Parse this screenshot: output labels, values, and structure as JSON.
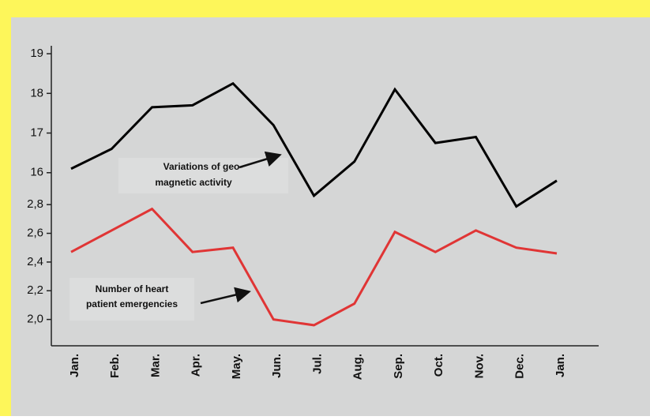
{
  "chart_data": {
    "type": "line",
    "categories": [
      "Jan.",
      "Feb.",
      "Mar.",
      "Apr.",
      "May.",
      "Jun.",
      "Jul.",
      "Aug.",
      "Sep.",
      "Oct.",
      "Nov.",
      "Dec.",
      "Jan."
    ],
    "series": [
      {
        "name": "Variations of geo-magnetic activity",
        "color": "#000000",
        "values": [
          16.1,
          16.6,
          17.65,
          17.7,
          18.25,
          17.2,
          15.42,
          16.28,
          18.1,
          16.75,
          16.9,
          15.15,
          15.8
        ]
      },
      {
        "name": "Number of heart patient emergencies",
        "color": "#e03535",
        "axis": "y2",
        "values": [
          2.47,
          2.62,
          2.77,
          2.47,
          2.5,
          2.0,
          1.96,
          2.11,
          2.61,
          2.47,
          2.62,
          2.5,
          2.46
        ]
      }
    ],
    "ylim": [
      15.0,
      19.2
    ],
    "yticks": [
      16,
      17,
      18,
      19
    ],
    "y2lim": [
      1.8,
      2.9
    ],
    "y2ticks": [
      {
        "value": 2.0,
        "label": "2,0"
      },
      {
        "value": 2.2,
        "label": "2,2"
      },
      {
        "value": 2.4,
        "label": "2,4"
      },
      {
        "value": 2.6,
        "label": "2,6"
      },
      {
        "value": 2.8,
        "label": "2,8"
      }
    ],
    "annotations": [
      {
        "lines": [
          "Variations of geo-",
          "magnetic activity"
        ]
      },
      {
        "lines": [
          "Number of heart",
          "patient emergencies"
        ]
      }
    ]
  }
}
